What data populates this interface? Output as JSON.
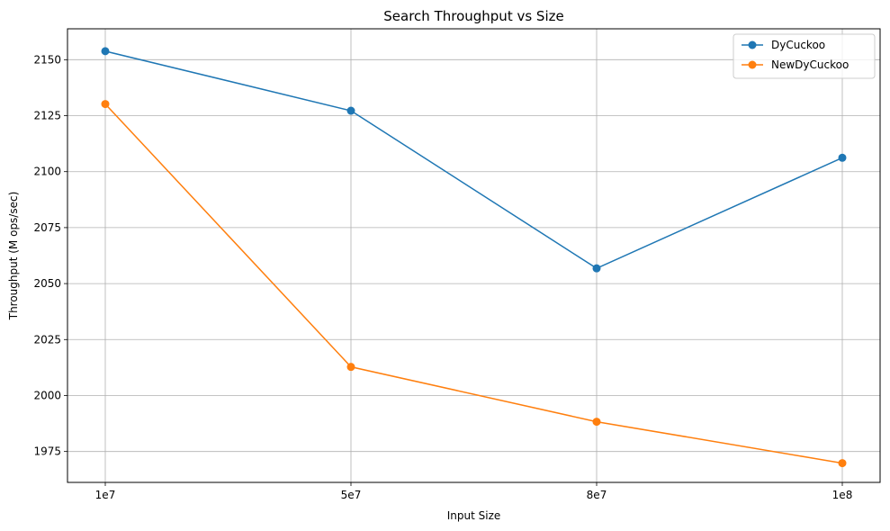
{
  "chart_data": {
    "type": "line",
    "title": "Search Throughput vs Size",
    "xlabel": "Input Size",
    "ylabel": "Throughput (M ops/sec)",
    "categories": [
      "1e7",
      "5e7",
      "8e7",
      "1e8"
    ],
    "yticks": [
      1975,
      2000,
      2025,
      2050,
      2075,
      2100,
      2125,
      2150
    ],
    "ylim": [
      1961.2,
      2163.8
    ],
    "grid": true,
    "legend_position": "top-right",
    "series": [
      {
        "name": "DyCuckoo",
        "color": "#1f77b4",
        "values": [
          2153.8,
          2127.2,
          2056.8,
          2106.2
        ]
      },
      {
        "name": "NewDyCuckoo",
        "color": "#ff7f0e",
        "values": [
          2130.2,
          2012.8,
          1988.3,
          1969.8
        ]
      }
    ]
  }
}
